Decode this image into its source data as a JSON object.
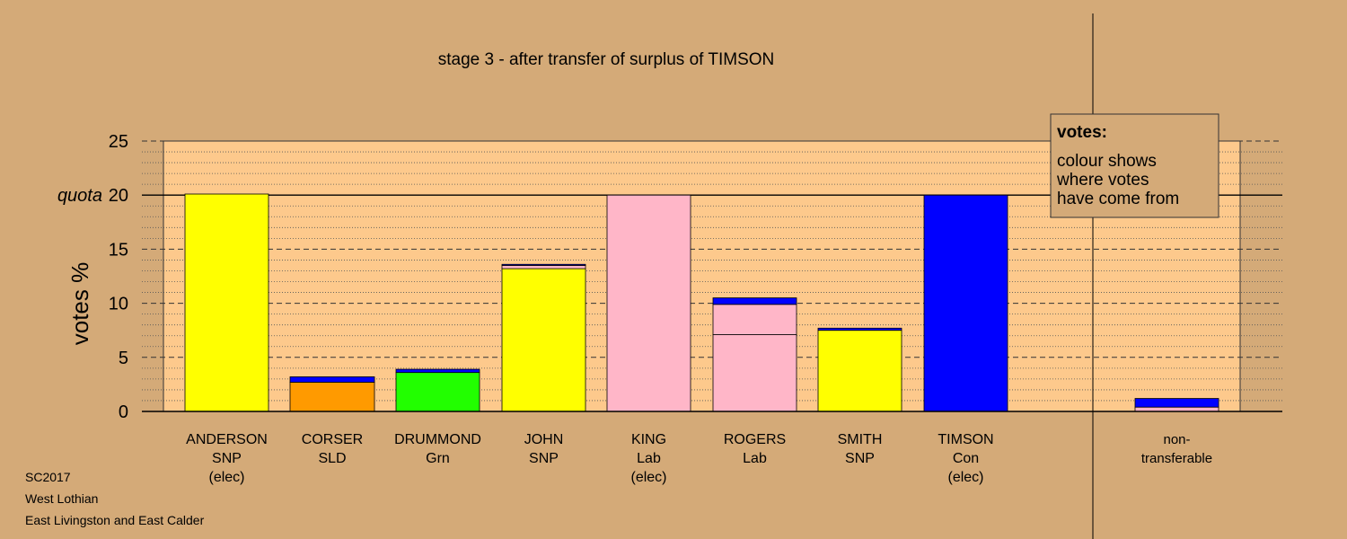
{
  "chart_data": {
    "type": "bar",
    "title": "stage 3 - after transfer of surplus of TIMSON",
    "ylabel": "votes %",
    "ylim": [
      0,
      25
    ],
    "yticks": [
      "0",
      "5",
      "10",
      "15",
      "20",
      "25"
    ],
    "quota_label": "quota",
    "quota_value": 20,
    "grid": true,
    "candidates": [
      {
        "lines": [
          "ANDERSON",
          "SNP",
          "(elec)"
        ],
        "segments": [
          {
            "value": 20.1,
            "color": "#ffff00"
          }
        ]
      },
      {
        "lines": [
          "CORSER",
          "SLD"
        ],
        "segments": [
          {
            "value": 2.7,
            "color": "#ff9a00"
          },
          {
            "value": 0.5,
            "color": "#0000ff"
          }
        ]
      },
      {
        "lines": [
          "DRUMMOND",
          "Grn"
        ],
        "segments": [
          {
            "value": 3.6,
            "color": "#22ff00"
          },
          {
            "value": 0.3,
            "color": "#0000ff"
          }
        ]
      },
      {
        "lines": [
          "JOHN",
          "SNP"
        ],
        "segments": [
          {
            "value": 13.2,
            "color": "#ffff00"
          },
          {
            "value": 0.3,
            "color": "#ffb6c8"
          },
          {
            "value": 0.1,
            "color": "#0000ff"
          }
        ]
      },
      {
        "lines": [
          "KING",
          "Lab",
          "(elec)"
        ],
        "segments": [
          {
            "value": 20.0,
            "color": "#ffb6c8"
          }
        ]
      },
      {
        "lines": [
          "ROGERS",
          "Lab"
        ],
        "segments": [
          {
            "value": 7.1,
            "color": "#ffb6c8"
          },
          {
            "value": 2.8,
            "color": "#ffb6c8"
          },
          {
            "value": 0.6,
            "color": "#0000ff"
          }
        ]
      },
      {
        "lines": [
          "SMITH",
          "SNP"
        ],
        "segments": [
          {
            "value": 7.5,
            "color": "#ffff00"
          },
          {
            "value": 0.2,
            "color": "#0000ff"
          }
        ]
      },
      {
        "lines": [
          "TIMSON",
          "Con",
          "(elec)"
        ],
        "segments": [
          {
            "value": 20.0,
            "color": "#0000ff"
          }
        ]
      }
    ],
    "nontransferable": {
      "lines": [
        "non-",
        "transferable"
      ],
      "segments": [
        {
          "value": 0.4,
          "color": "#ffb6c8"
        },
        {
          "value": 0.8,
          "color": "#0000ff"
        }
      ]
    },
    "legend": {
      "title": "votes:",
      "lines": [
        "colour shows",
        "where votes",
        "have come from"
      ],
      "position": "top-right"
    },
    "colors": {
      "background": "#d4aa78",
      "plot_background": "#fdc98c"
    }
  },
  "footer": {
    "line1": "SC2017",
    "line2": "West Lothian",
    "line3": "East Livingston and East Calder"
  }
}
